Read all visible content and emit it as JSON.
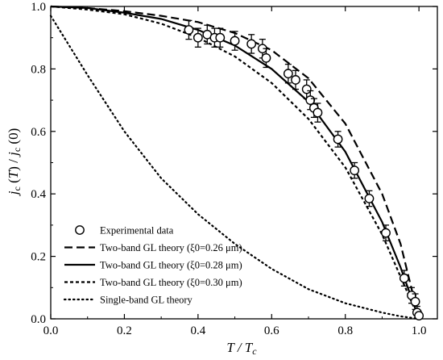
{
  "chart_data": {
    "type": "scatter",
    "xlabel": "T / T_c",
    "ylabel": "j_c (T) / j_c (0)",
    "xlim": [
      0.0,
      1.05
    ],
    "ylim": [
      0.0,
      1.0
    ],
    "x_ticks": [
      "0.0",
      "0.2",
      "0.4",
      "0.6",
      "0.8",
      "1.0"
    ],
    "y_ticks": [
      "0.0",
      "0.2",
      "0.4",
      "0.6",
      "0.8",
      "1.0"
    ],
    "grid": false,
    "legend_position": "bottom-left",
    "legend": [
      "Experimental data",
      "Two-band GL theory (ξ0=0.26 μm)",
      "Two-band GL theory (ξ0=0.28 μm)",
      "Two-band GL theory (ξ0=0.30 μm)",
      "Single-band GL theory"
    ],
    "series": [
      {
        "name": "Experimental data",
        "marker": "open-circle",
        "points": [
          {
            "x": 0.375,
            "y": 0.925,
            "err": 0.03
          },
          {
            "x": 0.4,
            "y": 0.9,
            "err": 0.03
          },
          {
            "x": 0.425,
            "y": 0.91,
            "err": 0.03
          },
          {
            "x": 0.445,
            "y": 0.9,
            "err": 0.03
          },
          {
            "x": 0.46,
            "y": 0.9,
            "err": 0.03
          },
          {
            "x": 0.5,
            "y": 0.89,
            "err": 0.03
          },
          {
            "x": 0.545,
            "y": 0.88,
            "err": 0.03
          },
          {
            "x": 0.575,
            "y": 0.865,
            "err": 0.03
          },
          {
            "x": 0.585,
            "y": 0.835,
            "err": 0.03
          },
          {
            "x": 0.645,
            "y": 0.785,
            "err": 0.03
          },
          {
            "x": 0.665,
            "y": 0.765,
            "err": 0.03
          },
          {
            "x": 0.695,
            "y": 0.735,
            "err": 0.03
          },
          {
            "x": 0.705,
            "y": 0.7,
            "err": 0.03
          },
          {
            "x": 0.715,
            "y": 0.675,
            "err": 0.03
          },
          {
            "x": 0.725,
            "y": 0.66,
            "err": 0.03
          },
          {
            "x": 0.78,
            "y": 0.575,
            "err": 0.025
          },
          {
            "x": 0.825,
            "y": 0.475,
            "err": 0.025
          },
          {
            "x": 0.865,
            "y": 0.385,
            "err": 0.025
          },
          {
            "x": 0.91,
            "y": 0.275,
            "err": 0.025
          },
          {
            "x": 0.96,
            "y": 0.13,
            "err": 0.025
          },
          {
            "x": 0.98,
            "y": 0.075,
            "err": 0.025
          },
          {
            "x": 0.99,
            "y": 0.055,
            "err": 0.025
          },
          {
            "x": 0.995,
            "y": 0.02,
            "err": 0.02
          },
          {
            "x": 1.0,
            "y": 0.01,
            "err": 0.01
          }
        ]
      },
      {
        "name": "Two-band GL theory (ξ0=0.26 μm)",
        "style": "dashed",
        "x": [
          0.0,
          0.1,
          0.2,
          0.3,
          0.4,
          0.5,
          0.6,
          0.7,
          0.8,
          0.9,
          0.95,
          1.0
        ],
        "y": [
          1.0,
          0.995,
          0.985,
          0.97,
          0.95,
          0.915,
          0.86,
          0.77,
          0.625,
          0.4,
          0.24,
          0.0
        ]
      },
      {
        "name": "Two-band GL theory (ξ0=0.28 μm)",
        "style": "solid",
        "x": [
          0.0,
          0.1,
          0.2,
          0.3,
          0.4,
          0.5,
          0.6,
          0.7,
          0.8,
          0.9,
          0.95,
          1.0
        ],
        "y": [
          1.0,
          0.995,
          0.98,
          0.96,
          0.925,
          0.875,
          0.8,
          0.695,
          0.535,
          0.31,
          0.165,
          0.0
        ]
      },
      {
        "name": "Two-band GL theory (ξ0=0.30 μm)",
        "style": "short-dash",
        "x": [
          0.0,
          0.1,
          0.2,
          0.3,
          0.4,
          0.5,
          0.6,
          0.7,
          0.8,
          0.9,
          0.95,
          1.0
        ],
        "y": [
          1.0,
          0.99,
          0.975,
          0.945,
          0.9,
          0.84,
          0.755,
          0.64,
          0.485,
          0.27,
          0.135,
          0.0
        ]
      },
      {
        "name": "Single-band GL theory",
        "style": "dotted",
        "x": [
          0.0,
          0.1,
          0.2,
          0.3,
          0.4,
          0.5,
          0.6,
          0.7,
          0.8,
          0.9,
          0.95,
          1.0
        ],
        "y": [
          0.97,
          0.78,
          0.6,
          0.45,
          0.335,
          0.24,
          0.16,
          0.095,
          0.05,
          0.02,
          0.008,
          0.0
        ]
      }
    ]
  }
}
